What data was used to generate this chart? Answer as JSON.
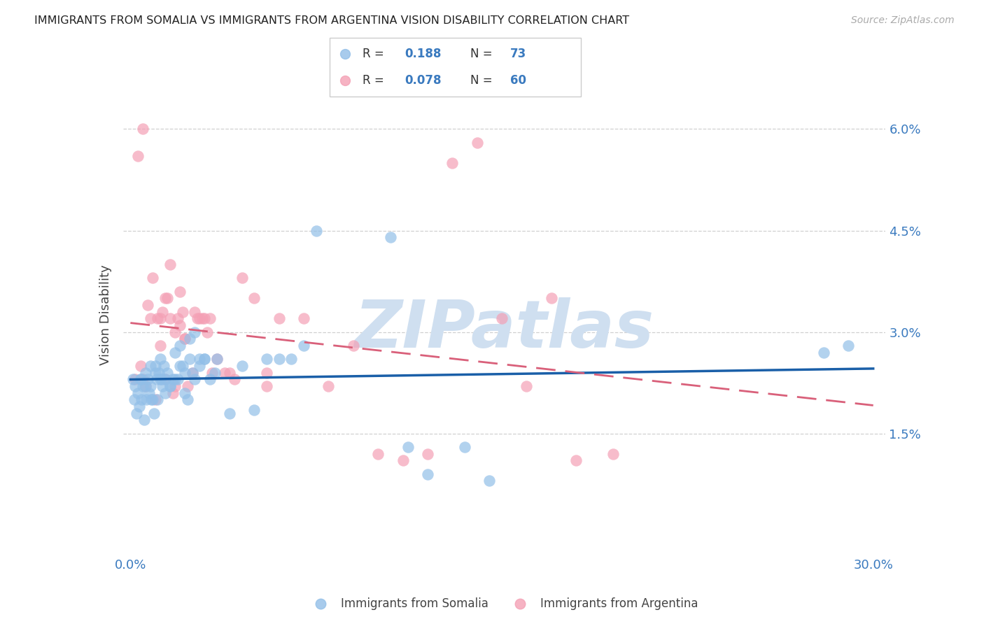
{
  "title": "IMMIGRANTS FROM SOMALIA VS IMMIGRANTS FROM ARGENTINA VISION DISABILITY CORRELATION CHART",
  "source": "Source: ZipAtlas.com",
  "ylabel": "Vision Disability",
  "ytick_labels": [
    "1.5%",
    "3.0%",
    "4.5%",
    "6.0%"
  ],
  "ytick_values": [
    1.5,
    3.0,
    4.5,
    6.0
  ],
  "xtick_values": [
    0.0,
    5.0,
    10.0,
    15.0,
    20.0,
    25.0,
    30.0
  ],
  "xlim": [
    -0.3,
    30.5
  ],
  "ylim": [
    -0.3,
    6.8
  ],
  "somalia_color": "#92bfe8",
  "argentina_color": "#f4a0b5",
  "somalia_R": 0.188,
  "somalia_N": 73,
  "argentina_R": 0.078,
  "argentina_N": 60,
  "watermark": "ZIPatlas",
  "watermark_color": "#cfdff0",
  "somalia_x": [
    0.1,
    0.15,
    0.2,
    0.25,
    0.3,
    0.35,
    0.4,
    0.45,
    0.5,
    0.55,
    0.6,
    0.65,
    0.7,
    0.75,
    0.8,
    0.85,
    0.9,
    0.95,
    1.0,
    1.05,
    1.1,
    1.15,
    1.2,
    1.25,
    1.3,
    1.35,
    1.4,
    1.5,
    1.6,
    1.7,
    1.8,
    1.9,
    2.0,
    2.1,
    2.2,
    2.3,
    2.4,
    2.5,
    2.6,
    2.8,
    3.0,
    3.2,
    3.5,
    4.0,
    4.5,
    5.0,
    5.5,
    6.0,
    6.5,
    7.0,
    7.5,
    10.5,
    11.2,
    12.0,
    13.5,
    14.5,
    0.4,
    0.6,
    0.8,
    1.0,
    1.2,
    1.4,
    1.6,
    1.8,
    2.0,
    2.2,
    2.4,
    2.6,
    2.8,
    3.0,
    3.4,
    28.0,
    29.0
  ],
  "somalia_y": [
    2.3,
    2.0,
    2.2,
    1.8,
    2.1,
    1.9,
    2.3,
    2.0,
    2.2,
    1.7,
    2.4,
    2.0,
    2.3,
    2.1,
    2.2,
    2.0,
    2.0,
    1.8,
    2.5,
    2.3,
    2.0,
    2.4,
    2.6,
    2.3,
    2.2,
    2.5,
    2.3,
    2.4,
    2.2,
    2.3,
    2.7,
    2.3,
    2.8,
    2.5,
    2.1,
    2.0,
    2.9,
    2.4,
    3.0,
    2.6,
    2.6,
    2.3,
    2.6,
    1.8,
    2.5,
    1.85,
    2.6,
    2.6,
    2.6,
    2.8,
    4.5,
    4.4,
    1.3,
    0.9,
    1.3,
    0.8,
    2.3,
    2.2,
    2.5,
    2.4,
    2.3,
    2.1,
    2.2,
    2.3,
    2.5,
    2.4,
    2.6,
    2.3,
    2.5,
    2.6,
    2.4,
    2.7,
    2.8
  ],
  "argentina_x": [
    0.2,
    0.3,
    0.4,
    0.5,
    0.6,
    0.7,
    0.8,
    0.9,
    1.0,
    1.1,
    1.2,
    1.3,
    1.4,
    1.5,
    1.6,
    1.7,
    1.8,
    1.9,
    2.0,
    2.1,
    2.2,
    2.3,
    2.5,
    2.7,
    2.9,
    3.1,
    3.3,
    3.5,
    4.0,
    4.5,
    5.0,
    5.5,
    6.0,
    7.0,
    8.0,
    9.0,
    10.0,
    11.0,
    12.0,
    13.0,
    14.0,
    15.0,
    16.0,
    17.0,
    18.0,
    19.5,
    1.2,
    1.4,
    0.5,
    2.6,
    2.8,
    3.0,
    3.2,
    3.8,
    4.2,
    5.5,
    1.6,
    1.8,
    2.0,
    2.2
  ],
  "argentina_y": [
    2.3,
    5.6,
    2.5,
    6.0,
    2.2,
    3.4,
    3.2,
    3.8,
    2.0,
    3.2,
    2.8,
    3.3,
    2.3,
    3.5,
    4.0,
    2.1,
    2.2,
    3.2,
    3.6,
    3.3,
    2.9,
    2.2,
    2.4,
    3.2,
    3.2,
    3.0,
    2.4,
    2.6,
    2.4,
    3.8,
    3.5,
    2.2,
    3.2,
    3.2,
    2.2,
    2.8,
    1.2,
    1.1,
    1.2,
    5.5,
    5.8,
    3.2,
    2.2,
    3.5,
    1.1,
    1.2,
    3.2,
    3.5,
    2.3,
    3.3,
    3.2,
    3.2,
    3.2,
    2.4,
    2.3,
    2.4,
    3.2,
    3.0,
    3.1,
    2.9
  ]
}
